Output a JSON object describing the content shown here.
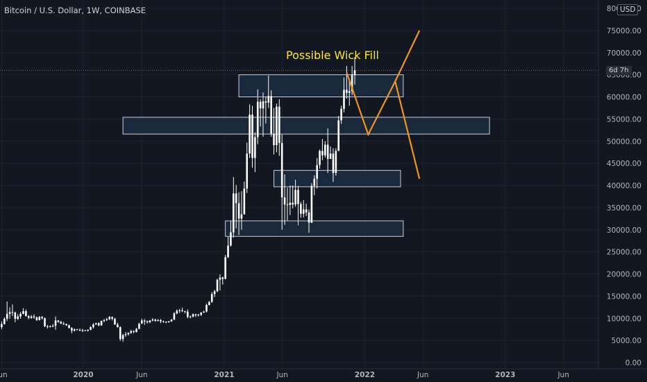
{
  "header": {
    "symbol_line": "Bitcoin / U.S. Dollar, 1W, COINBASE"
  },
  "price_axis": {
    "currency": "USD",
    "countdown": "6d 7h"
  },
  "annotation": {
    "text": "Possible Wick Fill",
    "color": "#f5e63c"
  },
  "colors": {
    "background": "#131722",
    "candle_up": "#ffffff",
    "candle_down": "#ffffff",
    "zone_fill": "#1c2b40",
    "zone_border": "#c8d0dc",
    "projection": "#f0961e",
    "axis_text": "#b2b5be"
  },
  "chart_data": {
    "type": "candlestick",
    "title": "Bitcoin / U.S. Dollar, 1W, COINBASE",
    "ylim": [
      0,
      80000
    ],
    "y_ticks": [
      0,
      5000,
      10000,
      15000,
      20000,
      25000,
      30000,
      35000,
      40000,
      45000,
      50000,
      55000,
      60000,
      65000,
      70000,
      75000,
      80000
    ],
    "y_tick_labels": [
      "0.00",
      "5000.00",
      "10000.00",
      "15000.00",
      "20000.00",
      "25000.00",
      "30000.00",
      "35000.00",
      "40000.00",
      "45000.00",
      "50000.00",
      "55000.00",
      "60000.00",
      "65000.00",
      "70000.00",
      "75000.00",
      "80000.00"
    ],
    "x_range": [
      "2019-06-03",
      "2023-07-03"
    ],
    "x_ticks": [
      {
        "date": "2019-06-03",
        "label": "Jun"
      },
      {
        "date": "2020-01-01",
        "label": "2020"
      },
      {
        "date": "2020-06-01",
        "label": "Jun"
      },
      {
        "date": "2021-01-01",
        "label": "2021"
      },
      {
        "date": "2021-06-01",
        "label": "Jun"
      },
      {
        "date": "2022-01-01",
        "label": "2022"
      },
      {
        "date": "2022-06-01",
        "label": "Jun"
      },
      {
        "date": "2023-01-01",
        "label": "2023"
      },
      {
        "date": "2023-06-01",
        "label": "Jun"
      }
    ],
    "current_price": 66000,
    "candles_weekly": [
      {
        "start": "2019-06-03",
        "values": [
          [
            8000,
            9300,
            7500,
            8700
          ],
          [
            8700,
            10200,
            8600,
            9900
          ],
          [
            9900,
            13800,
            9400,
            11000
          ],
          [
            11000,
            12500,
            9900,
            11400
          ],
          [
            11400,
            13100,
            10500,
            11300
          ],
          [
            11300,
            11500,
            9100,
            9900
          ],
          [
            9900,
            10900,
            9600,
            10400
          ],
          [
            10400,
            11400,
            9900,
            11000
          ],
          [
            11000,
            12300,
            10900,
            11600
          ],
          [
            11600,
            12000,
            10400,
            10500
          ],
          [
            10500,
            10700,
            9800,
            10100
          ],
          [
            10100,
            10700,
            9900,
            10400
          ],
          [
            10400,
            10900,
            9900,
            10200
          ],
          [
            10200,
            10400,
            9400,
            9600
          ],
          [
            9600,
            10500,
            9500,
            10300
          ],
          [
            10300,
            10500,
            9700,
            10000
          ],
          [
            10000,
            10200,
            8000,
            8200
          ],
          [
            8200,
            8500,
            7700,
            8200
          ],
          [
            8200,
            8400,
            7900,
            8100
          ],
          [
            8100,
            8700,
            8000,
            8300
          ],
          [
            8300,
            10400,
            7400,
            9500
          ],
          [
            9500,
            9600,
            9000,
            9200
          ],
          [
            9200,
            9400,
            8700,
            8800
          ],
          [
            8800,
            9200,
            8500,
            8700
          ],
          [
            8700,
            8800,
            8300,
            8400
          ],
          [
            8400,
            8600,
            7700,
            7800
          ],
          [
            7800,
            8000,
            6600,
            7200
          ],
          [
            7200,
            7700,
            7000,
            7500
          ],
          [
            7500,
            7600,
            7300,
            7400
          ],
          [
            7400,
            7700,
            7100,
            7200
          ],
          [
            7200,
            7600,
            6900,
            7300
          ],
          [
            7300,
            7400,
            7100,
            7200
          ],
          [
            7200,
            7500,
            7000,
            7400
          ],
          [
            7400,
            8200,
            7300,
            8000
          ],
          [
            8000,
            8900,
            7700,
            8600
          ],
          [
            8600,
            9000,
            8500,
            8900
          ],
          [
            8900,
            9100,
            8200,
            8400
          ],
          [
            8400,
            9500,
            8300,
            9400
          ],
          [
            9400,
            9800,
            9100,
            9600
          ],
          [
            9600,
            10100,
            9400,
            9800
          ],
          [
            9800,
            10500,
            9600,
            10300
          ],
          [
            10300,
            10400,
            9500,
            9900
          ],
          [
            9900,
            10100,
            8500,
            8600
          ],
          [
            8600,
            9000,
            7900,
            8000
          ],
          [
            8000,
            8200,
            4900,
            5300
          ],
          [
            5300,
            6500,
            4700,
            6200
          ],
          [
            6200,
            6900,
            5800,
            6400
          ],
          [
            6400,
            6800,
            6100,
            6700
          ],
          [
            6700,
            7400,
            6500,
            7100
          ],
          [
            7100,
            7300,
            6600,
            6900
          ],
          [
            6900,
            7800,
            6800,
            7600
          ],
          [
            7600,
            9000,
            7500,
            8800
          ],
          [
            8800,
            9900,
            8700,
            9500
          ],
          [
            9500,
            9800,
            8500,
            9300
          ],
          [
            9300,
            9500,
            8800,
            9100
          ],
          [
            9100,
            9600,
            8900,
            9500
          ],
          [
            9500,
            10000,
            9300,
            9700
          ],
          [
            9700,
            9900,
            9200,
            9400
          ],
          [
            9400,
            9800,
            9300,
            9600
          ],
          [
            9600,
            9800,
            8900,
            9300
          ],
          [
            9300,
            9500,
            9000,
            9200
          ],
          [
            9200,
            9300,
            8900,
            9100
          ],
          [
            9100,
            9400,
            9000,
            9300
          ],
          [
            9300,
            9800,
            9200,
            9700
          ],
          [
            9700,
            11400,
            9600,
            11100
          ],
          [
            11100,
            12000,
            10900,
            11700
          ],
          [
            11700,
            12100,
            11200,
            11800
          ],
          [
            11800,
            12400,
            11400,
            11600
          ],
          [
            11600,
            11700,
            11100,
            11500
          ],
          [
            11500,
            12000,
            10000,
            10300
          ],
          [
            10300,
            10600,
            10000,
            10400
          ],
          [
            10400,
            11100,
            10200,
            10900
          ],
          [
            10900,
            11000,
            10300,
            10700
          ],
          [
            10700,
            11000,
            10400,
            10800
          ],
          [
            10800,
            11400,
            10500,
            11300
          ],
          [
            11300,
            11700,
            11200,
            11500
          ],
          [
            11500,
            13300,
            11300,
            13000
          ],
          [
            13000,
            13900,
            12900,
            13700
          ],
          [
            13700,
            15900,
            13500,
            15500
          ],
          [
            15500,
            16400,
            14800,
            16100
          ],
          [
            16100,
            18900,
            15900,
            18700
          ],
          [
            18700,
            19900,
            16300,
            19200
          ],
          [
            19200,
            19400,
            17600,
            18900
          ],
          [
            18900,
            24300,
            18800,
            23800
          ],
          [
            23800,
            28400,
            23600,
            26400
          ],
          [
            26400,
            32000,
            26200,
            29400
          ],
          [
            29400,
            41900,
            28200,
            38200
          ],
          [
            38200,
            40100,
            30300,
            36000
          ],
          [
            36000,
            38500,
            28800,
            32500
          ],
          [
            32500,
            38700,
            30000,
            33500
          ],
          [
            33500,
            40900,
            33400,
            39300
          ],
          [
            39300,
            49700,
            38300,
            47200
          ],
          [
            47200,
            58300,
            46200,
            56000
          ],
          [
            56000,
            58000,
            44000,
            46200
          ],
          [
            46200,
            52000,
            43000,
            50900
          ],
          [
            50900,
            61700,
            49300,
            58900
          ],
          [
            58900,
            59500,
            53300,
            57400
          ],
          [
            57400,
            61000,
            51000,
            59000
          ],
          [
            59000,
            60000,
            54000,
            58700
          ],
          [
            58700,
            64800,
            57500,
            60200
          ],
          [
            60200,
            61500,
            51000,
            51700
          ],
          [
            51700,
            57500,
            47000,
            49100
          ],
          [
            49100,
            58500,
            47500,
            57800
          ],
          [
            57800,
            59500,
            46700,
            49600
          ],
          [
            49600,
            51500,
            30000,
            37300
          ],
          [
            37300,
            42500,
            31100,
            35700
          ],
          [
            35700,
            39500,
            32100,
            35600
          ],
          [
            35600,
            40000,
            33300,
            36100
          ],
          [
            36100,
            40000,
            34800,
            35700
          ],
          [
            35700,
            41300,
            35200,
            39000
          ],
          [
            39000,
            39900,
            31000,
            35800
          ],
          [
            35800,
            36300,
            32700,
            33600
          ],
          [
            33600,
            36700,
            32800,
            34600
          ],
          [
            34600,
            35900,
            33100,
            33900
          ],
          [
            33900,
            34600,
            29300,
            31600
          ],
          [
            31600,
            40500,
            31500,
            39900
          ],
          [
            39900,
            42300,
            37800,
            41500
          ],
          [
            41500,
            46200,
            39300,
            44600
          ],
          [
            44600,
            48100,
            43800,
            47800
          ],
          [
            47800,
            50500,
            45700,
            46800
          ],
          [
            46800,
            50000,
            46300,
            49200
          ],
          [
            49200,
            52900,
            42800,
            46000
          ],
          [
            46000,
            48800,
            46000,
            47200
          ],
          [
            47200,
            48400,
            40800,
            42800
          ],
          [
            42800,
            48400,
            42200,
            47800
          ],
          [
            47800,
            55700,
            47800,
            54700
          ],
          [
            54700,
            58000,
            53900,
            57300
          ],
          [
            57300,
            64400,
            56500,
            61600
          ],
          [
            61600,
            67000,
            59600,
            60900
          ],
          [
            60900,
            63700,
            58000,
            61300
          ],
          [
            61300,
            67000,
            60400,
            64900
          ],
          [
            64900,
            69000,
            62800,
            66000
          ]
        ]
      }
    ],
    "zones": [
      {
        "top": 65000,
        "bottom": 60000,
        "start": "2021-02-08",
        "end": "2022-04-11"
      },
      {
        "top": 55400,
        "bottom": 51600,
        "start": "2020-04-13",
        "end": "2022-11-21"
      },
      {
        "top": 43400,
        "bottom": 39700,
        "start": "2021-05-10",
        "end": "2022-04-04"
      },
      {
        "top": 32000,
        "bottom": 28500,
        "start": "2021-01-04",
        "end": "2022-04-11"
      }
    ],
    "projections": [
      {
        "points": [
          [
            "2021-11-15",
            65500
          ],
          [
            "2022-01-10",
            51500
          ],
          [
            "2022-03-21",
            63500
          ],
          [
            "2022-05-23",
            41500
          ]
        ]
      },
      {
        "points": [
          [
            "2022-03-21",
            63500
          ],
          [
            "2022-05-23",
            75000
          ]
        ]
      }
    ]
  }
}
